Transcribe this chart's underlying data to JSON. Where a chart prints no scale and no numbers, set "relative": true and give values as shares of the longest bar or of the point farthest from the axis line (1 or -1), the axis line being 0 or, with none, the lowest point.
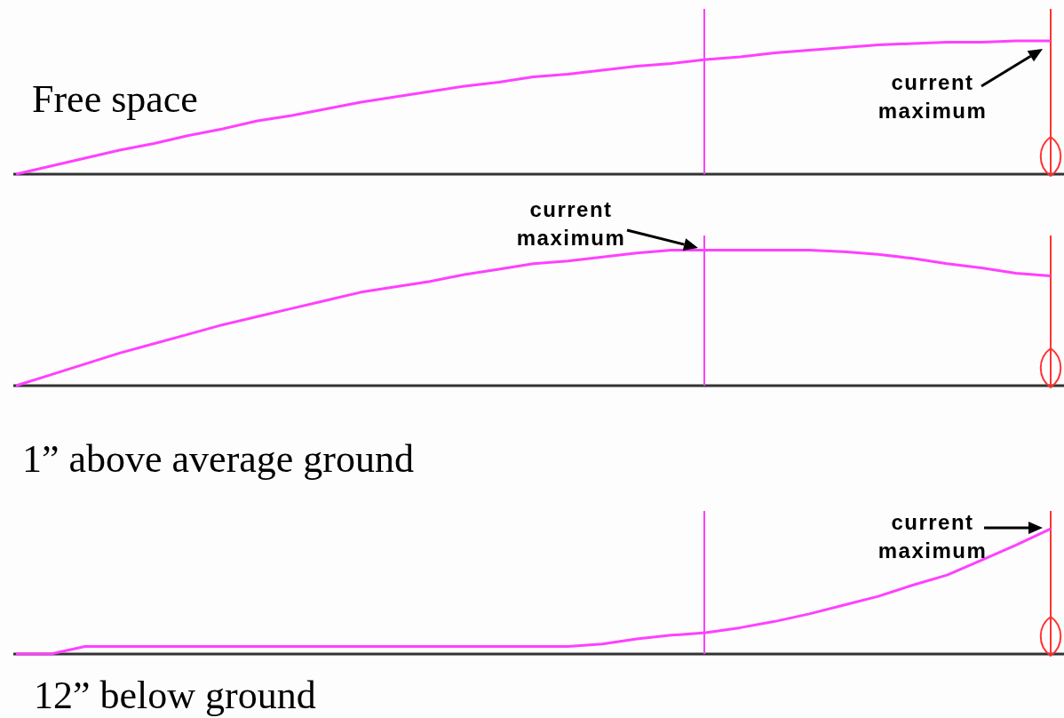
{
  "chart_data": [
    {
      "type": "line",
      "title": "Free space",
      "relative": true,
      "color": "#ff40ff",
      "categories": [
        null,
        null,
        null,
        null,
        null,
        null,
        null,
        null,
        null,
        null,
        null,
        null,
        null,
        null,
        null,
        null,
        null,
        null,
        null,
        null,
        null,
        null,
        null,
        null,
        null,
        null,
        null,
        null,
        null,
        null,
        null
      ],
      "values": [
        0,
        0.06,
        0.12,
        0.18,
        0.23,
        0.29,
        0.34,
        0.4,
        0.44,
        0.49,
        0.54,
        0.58,
        0.62,
        0.66,
        0.69,
        0.73,
        0.75,
        0.78,
        0.81,
        0.83,
        0.86,
        0.88,
        0.91,
        0.93,
        0.95,
        0.97,
        0.98,
        0.99,
        0.99,
        1,
        1
      ],
      "annotations": [
        "current maximum"
      ]
    },
    {
      "type": "line",
      "title": "1” above average ground",
      "relative": true,
      "color": "#ff40ff",
      "categories": [
        null,
        null,
        null,
        null,
        null,
        null,
        null,
        null,
        null,
        null,
        null,
        null,
        null,
        null,
        null,
        null,
        null,
        null,
        null,
        null,
        null,
        null,
        null,
        null,
        null,
        null,
        null,
        null,
        null,
        null,
        null
      ],
      "values": [
        0,
        0.08,
        0.16,
        0.24,
        0.31,
        0.38,
        0.45,
        0.51,
        0.57,
        0.63,
        0.69,
        0.73,
        0.77,
        0.82,
        0.86,
        0.9,
        0.92,
        0.95,
        0.98,
        1,
        1,
        1,
        1,
        1,
        0.99,
        0.97,
        0.94,
        0.9,
        0.87,
        0.83,
        0.81
      ],
      "annotations": [
        "current maximum"
      ]
    },
    {
      "type": "line",
      "title": "12” below ground",
      "relative": true,
      "color": "#ff40ff",
      "categories": [
        null,
        null,
        null,
        null,
        null,
        null,
        null,
        null,
        null,
        null,
        null,
        null,
        null,
        null,
        null,
        null,
        null,
        null,
        null,
        null,
        null,
        null,
        null,
        null,
        null,
        null,
        null,
        null,
        null,
        null,
        null
      ],
      "values": [
        0,
        0,
        0.06,
        0.06,
        0.06,
        0.06,
        0.06,
        0.06,
        0.06,
        0.06,
        0.06,
        0.06,
        0.06,
        0.06,
        0.06,
        0.06,
        0.06,
        0.08,
        0.12,
        0.15,
        0.17,
        0.21,
        0.26,
        0.32,
        0.39,
        0.46,
        0.55,
        0.63,
        0.75,
        0.87,
        1
      ],
      "annotations": [
        "current maximum"
      ]
    }
  ]
}
